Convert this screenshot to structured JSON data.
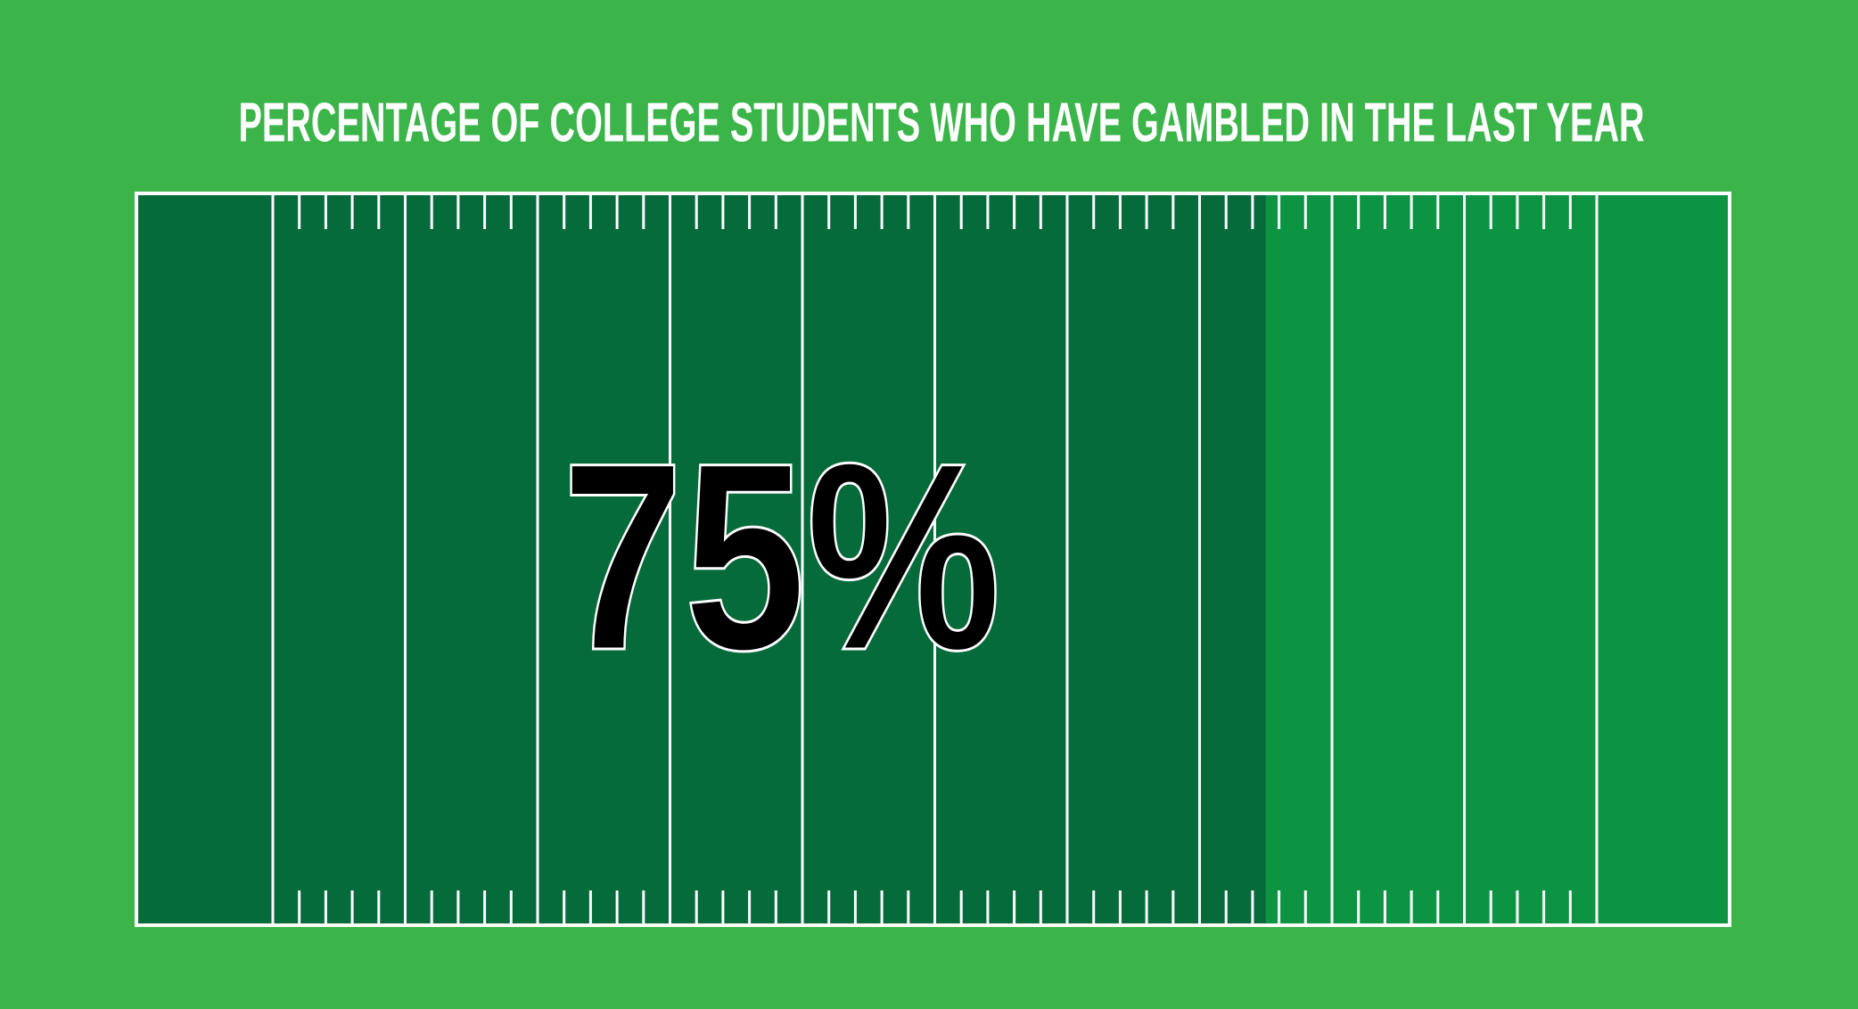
{
  "chart_data": {
    "type": "field",
    "title": "PERCENTAGE OF COLLEGE STUDENTS WHO HAVE GAMBLED IN THE LAST YEAR",
    "values": [
      75
    ],
    "value_labels": [
      "75%"
    ],
    "xlim": [
      0,
      100
    ],
    "color": "#066b3b",
    "background_color": "#0c9443"
  }
}
